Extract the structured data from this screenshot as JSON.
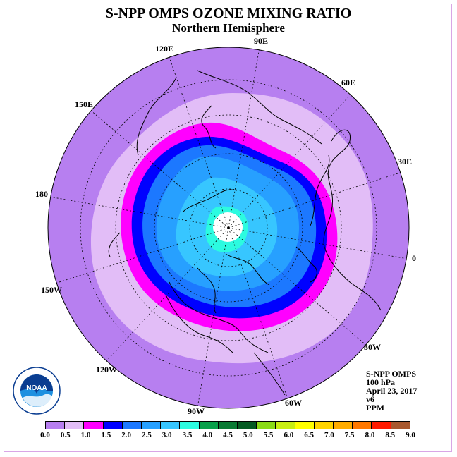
{
  "header": {
    "title": "S-NPP OMPS OZONE MIXING RATIO",
    "subtitle": "Northern Hemisphere"
  },
  "map": {
    "projection": "north-polar-stereographic",
    "longitude_labels": [
      "90E",
      "60E",
      "30E",
      "0",
      "30W",
      "60W",
      "90W",
      "120W",
      "150W",
      "180",
      "150E",
      "120E"
    ],
    "contour_colors": {
      "0.0-0.5": "#b77ff0",
      "0.5-1.0": "#e2bdf7",
      "1.0-1.5": "#ff00ff",
      "1.5-2.0": "#0000ff",
      "2.0-2.5": "#1c78ff",
      "2.5-3.0": "#27a0ff",
      "3.0-3.5": "#37c6ff",
      "3.5-4.0": "#2cfbe0",
      "polar_no_data": "#ffffff"
    }
  },
  "info": {
    "instrument": "S-NPP OMPS",
    "level": "100 hPa",
    "date": "April 23, 2017",
    "version": "v6",
    "units": "PPM"
  },
  "logo": {
    "icon": "noaa-logo-icon",
    "text": "NOAA"
  },
  "colorbar": {
    "colors": [
      "#b77ff0",
      "#e2bdf7",
      "#ff00ff",
      "#0000ff",
      "#1c78ff",
      "#27a0ff",
      "#37c6ff",
      "#2cfbe0",
      "#08a04a",
      "#0a7a34",
      "#045a22",
      "#8adb16",
      "#c8ee12",
      "#ffff00",
      "#ffd400",
      "#ffac00",
      "#ff7800",
      "#ff1a00",
      "#a8582e"
    ],
    "ticks": [
      "0.0",
      "0.5",
      "1.0",
      "1.5",
      "2.0",
      "2.5",
      "3.0",
      "3.5",
      "4.0",
      "4.5",
      "5.0",
      "5.5",
      "6.0",
      "6.5",
      "7.0",
      "7.5",
      "8.0",
      "8.5",
      "9.0"
    ]
  }
}
